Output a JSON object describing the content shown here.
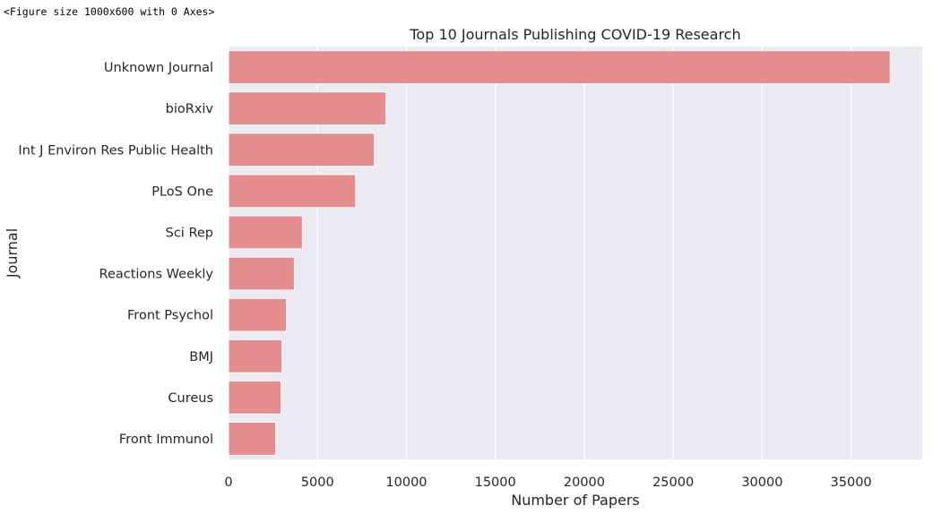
{
  "console_output": "<Figure size 1000x600 with 0 Axes>",
  "chart_data": {
    "type": "bar",
    "orientation": "horizontal",
    "title": "Top 10 Journals Publishing COVID-19 Research",
    "xlabel": "Number of Papers",
    "ylabel": "Journal",
    "categories": [
      "Unknown Journal",
      "bioRxiv",
      "Int J Environ Res Public Health",
      "PLoS One",
      "Sci Rep",
      "Reactions Weekly",
      "Front Psychol",
      "BMJ",
      "Cureus",
      "Front Immunol"
    ],
    "values": [
      37200,
      8850,
      8200,
      7150,
      4150,
      3700,
      3250,
      3000,
      2950,
      2650
    ],
    "xlim": [
      0,
      39000
    ],
    "xticks": [
      0,
      5000,
      10000,
      15000,
      20000,
      25000,
      30000,
      35000
    ],
    "grid": true,
    "colors": {
      "bar": "#E58D8D",
      "plot_background": "#EAEAF2",
      "grid": "#FFFFFF",
      "text": "#262626"
    }
  }
}
